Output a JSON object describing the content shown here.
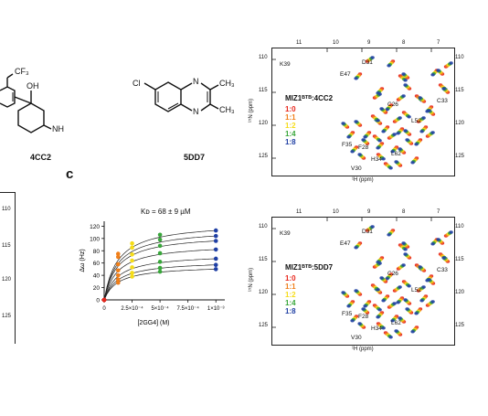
{
  "compounds": {
    "left": {
      "label": "4CC2",
      "atoms": {
        "cf3": "CF₃",
        "oh": "OH",
        "nh": "NH"
      }
    },
    "right": {
      "label": "5DD7",
      "atoms": {
        "cl": "Cl",
        "n1": "N",
        "n2": "N",
        "ch3a": "CH₃",
        "ch3b": "CH₃"
      }
    }
  },
  "panel_letter": "c",
  "left_axis_ticks": [
    "110",
    "115",
    "120",
    "125"
  ],
  "chart_data": {
    "type": "scatter",
    "annotation": "Kᴅ = 68 ± 9 µM",
    "xlabel": "[2GG4] (M)",
    "ylabel": "Δω (Hz)",
    "xticks": [
      "0",
      "2.5×10⁻⁴",
      "5×10⁻⁴",
      "7.5×10⁻⁴",
      "1×10⁻³"
    ],
    "yticks": [
      "0",
      "20",
      "40",
      "60",
      "80",
      "100",
      "120"
    ],
    "xlim": [
      0,
      0.00108
    ],
    "ylim": [
      0,
      128
    ],
    "x": [
      0,
      0.000125,
      0.00025,
      0.0005,
      0.001
    ],
    "series": [
      {
        "values": [
          0,
          75,
          92,
          106,
          113
        ]
      },
      {
        "values": [
          0,
          70,
          85,
          98,
          104
        ]
      },
      {
        "values": [
          0,
          58,
          74,
          88,
          96
        ]
      },
      {
        "values": [
          0,
          48,
          64,
          76,
          82
        ]
      },
      {
        "values": [
          0,
          40,
          53,
          62,
          67
        ]
      },
      {
        "values": [
          0,
          33,
          44,
          52,
          57
        ]
      },
      {
        "values": [
          0,
          28,
          38,
          46,
          50
        ]
      }
    ],
    "point_colors": [
      "#e8261c",
      "#f07f1a",
      "#f5dc18",
      "#38a63a",
      "#1f3fa4"
    ]
  },
  "spectra": [
    {
      "title": "MIZ1ᴮᵀᴮ:4CC2",
      "ratios": [
        "1:0",
        "1:1",
        "1:2",
        "1:4",
        "1:8"
      ],
      "ratio_colors": [
        "#e8261c",
        "#f07f1a",
        "#f5dc18",
        "#38a63a",
        "#1f3fa4"
      ],
      "x_ticks": [
        "11",
        "10",
        "9",
        "8",
        "7"
      ],
      "y_ticks": [
        "110",
        "115",
        "120",
        "125"
      ],
      "xlabel": "¹H (ppm)",
      "ylabel": "¹⁵N (ppm)",
      "peaks": [
        "K39",
        "D31",
        "E47",
        "C26",
        "C33",
        "L52",
        "F35",
        "F28",
        "V30",
        "H34",
        "L62"
      ]
    },
    {
      "title": "MIZ1ᴮᵀᴮ:5DD7",
      "ratios": [
        "1:0",
        "1:1",
        "1:2",
        "1:4",
        "1:8"
      ],
      "ratio_colors": [
        "#e8261c",
        "#f07f1a",
        "#f5dc18",
        "#38a63a",
        "#1f3fa4"
      ],
      "x_ticks": [
        "11",
        "10",
        "9",
        "8",
        "7"
      ],
      "y_ticks": [
        "110",
        "115",
        "120",
        "125"
      ],
      "xlabel": "¹H (ppm)",
      "ylabel": "¹⁵N (ppm)",
      "peaks": [
        "K39",
        "D31",
        "E47",
        "C26",
        "C33",
        "L52",
        "F35",
        "F28",
        "V30",
        "H34",
        "L62"
      ]
    }
  ]
}
